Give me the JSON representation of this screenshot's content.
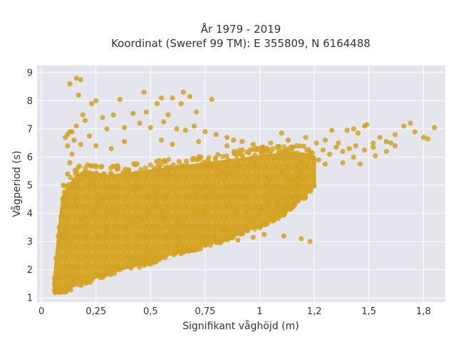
{
  "chart_data": {
    "type": "scatter",
    "title_lines": [
      "År 1979 - 2019",
      "Koordinat (Sweref 99 TM): E 355809, N 6164488"
    ],
    "xlabel": "Signifikant våghöjd (m)",
    "ylabel": "Vågperiod (s)",
    "xlim": [
      -0.02,
      1.85
    ],
    "ylim": [
      0.85,
      9.25
    ],
    "x_ticks": [
      0,
      0.25,
      0.5,
      0.75,
      1,
      1.25,
      1.5,
      1.75
    ],
    "x_tick_labels": [
      "0",
      "0,25",
      "0,5",
      "0,75",
      "1",
      "1,2",
      "1,5",
      "1,8"
    ],
    "y_ticks": [
      1,
      2,
      3,
      4,
      5,
      6,
      7,
      8,
      9
    ],
    "y_tick_labels": [
      "1",
      "2",
      "3",
      "4",
      "5",
      "6",
      "7",
      "8",
      "9"
    ],
    "grid": true,
    "marker_color": "#D4A21F",
    "plot_background": "#E5E5EE",
    "core_region": {
      "x_range": [
        0.06,
        1.25
      ],
      "lower_bound": [
        [
          0.06,
          1.25
        ],
        [
          0.1,
          1.3
        ],
        [
          0.2,
          1.6
        ],
        [
          0.3,
          1.9
        ],
        [
          0.4,
          2.1
        ],
        [
          0.5,
          2.3
        ],
        [
          0.6,
          2.6
        ],
        [
          0.7,
          2.8
        ],
        [
          0.8,
          3.0
        ],
        [
          0.9,
          3.3
        ],
        [
          1.0,
          3.6
        ],
        [
          1.1,
          4.0
        ],
        [
          1.2,
          4.6
        ],
        [
          1.25,
          5.0
        ]
      ],
      "upper_bound": [
        [
          0.06,
          1.6
        ],
        [
          0.08,
          3.2
        ],
        [
          0.1,
          4.6
        ],
        [
          0.15,
          5.2
        ],
        [
          0.2,
          5.5
        ],
        [
          0.3,
          5.3
        ],
        [
          0.4,
          5.4
        ],
        [
          0.5,
          5.5
        ],
        [
          0.6,
          5.6
        ],
        [
          0.7,
          5.7
        ],
        [
          0.8,
          5.8
        ],
        [
          0.9,
          5.9
        ],
        [
          1.0,
          6.0
        ],
        [
          1.1,
          6.1
        ],
        [
          1.2,
          6.1
        ],
        [
          1.25,
          6.0
        ]
      ]
    },
    "points": [
      [
        0.13,
        8.6
      ],
      [
        0.16,
        8.8
      ],
      [
        0.18,
        8.75
      ],
      [
        0.17,
        8.2
      ],
      [
        0.23,
        7.9
      ],
      [
        0.25,
        8.0
      ],
      [
        0.36,
        8.05
      ],
      [
        0.47,
        8.3
      ],
      [
        0.55,
        8.1
      ],
      [
        0.6,
        8.1
      ],
      [
        0.65,
        8.3
      ],
      [
        0.68,
        8.15
      ],
      [
        0.78,
        8.05
      ],
      [
        0.64,
        7.9
      ],
      [
        0.71,
        7.6
      ],
      [
        0.53,
        7.9
      ],
      [
        0.58,
        7.5
      ],
      [
        0.48,
        7.6
      ],
      [
        0.42,
        7.55
      ],
      [
        0.33,
        7.5
      ],
      [
        0.28,
        7.4
      ],
      [
        0.2,
        7.3
      ],
      [
        0.14,
        6.9
      ],
      [
        0.12,
        6.8
      ],
      [
        0.15,
        6.6
      ],
      [
        0.22,
        6.75
      ],
      [
        0.3,
        7.0
      ],
      [
        0.38,
        7.05
      ],
      [
        0.45,
        7.2
      ],
      [
        0.5,
        7.05
      ],
      [
        0.56,
        7.25
      ],
      [
        0.62,
        7.0
      ],
      [
        0.66,
        6.95
      ],
      [
        0.7,
        7.1
      ],
      [
        0.75,
        6.9
      ],
      [
        0.8,
        6.8
      ],
      [
        0.85,
        6.7
      ],
      [
        0.88,
        6.6
      ],
      [
        0.92,
        6.55
      ],
      [
        0.97,
        6.45
      ],
      [
        1.01,
        6.35
      ],
      [
        1.05,
        6.5
      ],
      [
        1.1,
        6.85
      ],
      [
        1.13,
        6.6
      ],
      [
        1.17,
        6.4
      ],
      [
        1.21,
        6.7
      ],
      [
        1.26,
        6.5
      ],
      [
        1.3,
        6.6
      ],
      [
        1.33,
        6.95
      ],
      [
        1.36,
        6.5
      ],
      [
        1.4,
        6.95
      ],
      [
        1.43,
        7.0
      ],
      [
        1.45,
        6.85
      ],
      [
        1.48,
        7.1
      ],
      [
        1.49,
        7.15
      ],
      [
        1.44,
        6.4
      ],
      [
        1.41,
        6.3
      ],
      [
        1.38,
        6.2
      ],
      [
        1.35,
        6.35
      ],
      [
        1.32,
        6.1
      ],
      [
        1.29,
        6.25
      ],
      [
        1.27,
        5.9
      ],
      [
        1.24,
        6.15
      ],
      [
        1.3,
        5.75
      ],
      [
        1.38,
        5.8
      ],
      [
        1.43,
        6.0
      ],
      [
        1.46,
        5.75
      ],
      [
        1.52,
        6.5
      ],
      [
        1.55,
        6.7
      ],
      [
        1.58,
        6.55
      ],
      [
        1.62,
        6.8
      ],
      [
        1.6,
        6.5
      ],
      [
        1.66,
        7.1
      ],
      [
        1.69,
        7.2
      ],
      [
        1.71,
        6.9
      ],
      [
        1.75,
        6.7
      ],
      [
        1.77,
        6.65
      ],
      [
        1.8,
        7.05
      ],
      [
        1.53,
        6.05
      ],
      [
        1.58,
        6.2
      ],
      [
        1.62,
        6.4
      ],
      [
        1.48,
        6.25
      ],
      [
        1.52,
        6.35
      ],
      [
        1.19,
        3.1
      ],
      [
        1.23,
        3.0
      ],
      [
        1.11,
        3.2
      ],
      [
        1.02,
        3.25
      ],
      [
        0.97,
        3.15
      ],
      [
        0.9,
        3.05
      ],
      [
        0.83,
        3.4
      ],
      [
        0.76,
        3.45
      ],
      [
        0.73,
        3.6
      ],
      [
        0.86,
        3.35
      ],
      [
        1.0,
        4.1
      ],
      [
        1.04,
        4.25
      ],
      [
        1.08,
        4.4
      ],
      [
        1.12,
        4.55
      ],
      [
        1.14,
        4.85
      ],
      [
        1.05,
        4.7
      ],
      [
        1.18,
        5.0
      ],
      [
        1.2,
        5.25
      ],
      [
        1.15,
        5.15
      ],
      [
        0.85,
        6.4
      ],
      [
        0.92,
        6.25
      ],
      [
        0.95,
        6.15
      ],
      [
        0.72,
        6.55
      ],
      [
        0.6,
        6.45
      ],
      [
        0.55,
        6.6
      ],
      [
        0.38,
        6.55
      ],
      [
        0.25,
        6.4
      ],
      [
        0.32,
        6.3
      ],
      [
        0.18,
        6.45
      ],
      [
        0.1,
        4.2
      ],
      [
        0.09,
        3.9
      ],
      [
        0.11,
        4.6
      ],
      [
        0.1,
        5.0
      ],
      [
        0.12,
        5.4
      ],
      [
        0.13,
        5.8
      ],
      [
        0.14,
        6.1
      ],
      [
        0.12,
        6.4
      ],
      [
        0.13,
        6.9
      ],
      [
        0.11,
        6.7
      ],
      [
        0.16,
        7.1
      ],
      [
        0.19,
        7.5
      ]
    ]
  }
}
